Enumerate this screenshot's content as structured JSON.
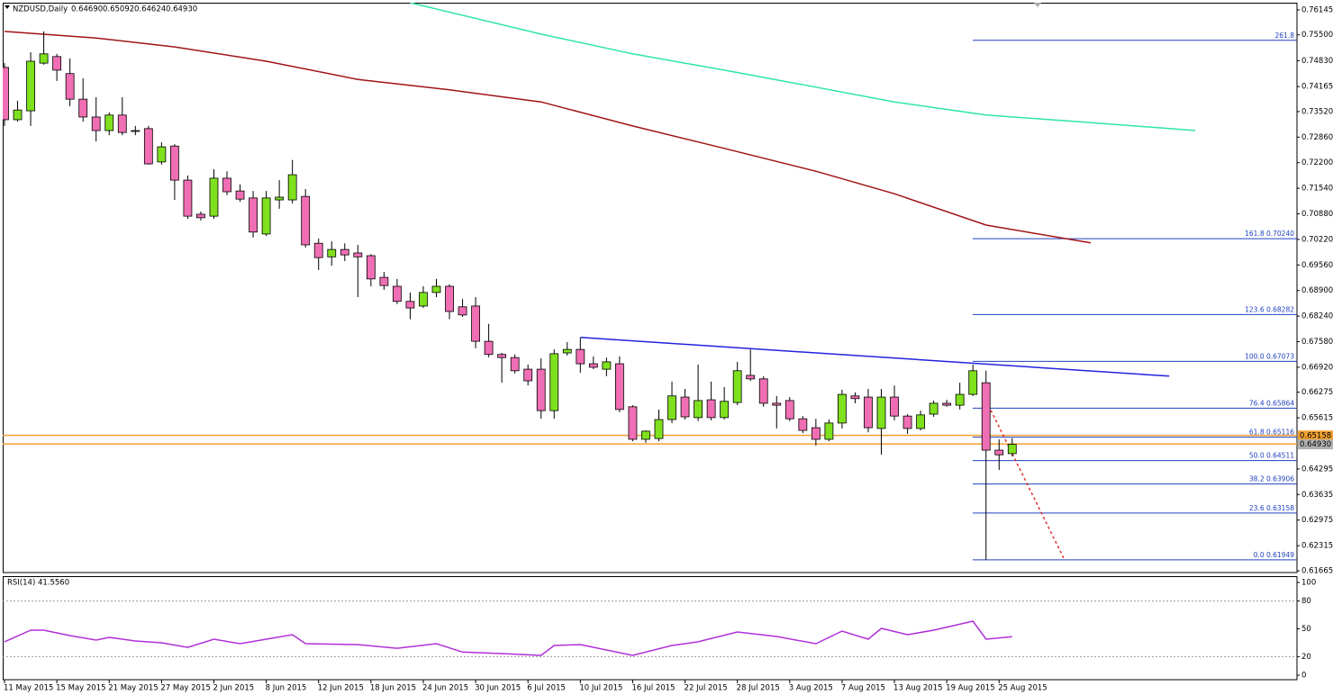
{
  "chart_data": {
    "type": "candlestick",
    "title": "NZDUSD,Daily",
    "header_values": [
      "0.64690",
      "0.65092",
      "0.64624",
      "0.64930"
    ],
    "categories": [
      "11 May 2015",
      null,
      null,
      null,
      "15 May 2015",
      null,
      null,
      null,
      "21 May 2015",
      null,
      null,
      null,
      "27 May 2015",
      null,
      null,
      null,
      "2 Jun 2015",
      null,
      null,
      null,
      "8 Jun 2015",
      null,
      null,
      null,
      "12 Jun 2015",
      null,
      null,
      null,
      "18 Jun 2015",
      null,
      null,
      null,
      "24 Jun 2015",
      null,
      null,
      null,
      "30 Jun 2015",
      null,
      null,
      null,
      "6 Jul 2015",
      null,
      null,
      null,
      "10 Jul 2015",
      null,
      null,
      null,
      "16 Jul 2015",
      null,
      null,
      null,
      "22 Jul 2015",
      null,
      null,
      null,
      "28 Jul 2015",
      null,
      null,
      null,
      "3 Aug 2015",
      null,
      null,
      null,
      "7 Aug 2015",
      null,
      null,
      null,
      "13 Aug 2015",
      null,
      null,
      null,
      "19 Aug 2015",
      null,
      null,
      null,
      "25 Aug 2015",
      null
    ],
    "open": [
      0.7466,
      0.7331,
      0.7354,
      0.7477,
      0.7494,
      0.745,
      0.7384,
      0.7338,
      0.7303,
      0.7343,
      0.7303,
      0.7308,
      0.7222,
      0.7263,
      0.7175,
      0.7087,
      0.7082,
      0.718,
      0.7147,
      0.7129,
      0.7036,
      0.7124,
      0.7124,
      0.7133,
      0.7012,
      0.6977,
      0.6996,
      0.6987,
      0.698,
      0.6924,
      0.6901,
      0.6862,
      0.685,
      0.6885,
      0.6901,
      0.6848,
      0.685,
      0.6759,
      0.6725,
      0.6717,
      0.6687,
      0.6687,
      0.658,
      0.6729,
      0.6738,
      0.6701,
      0.6687,
      0.6701,
      0.659,
      0.6506,
      0.6508,
      0.6557,
      0.6615,
      0.6562,
      0.6608,
      0.6562,
      0.6601,
      0.6671,
      0.6662,
      0.6599,
      0.6606,
      0.6559,
      0.6536,
      0.6506,
      0.6548,
      0.6618,
      0.6615,
      0.6534,
      0.6615,
      0.6566,
      0.6534,
      0.6571,
      0.6599,
      0.6594,
      0.6622,
      0.6652,
      0.6478,
      0.6469
    ],
    "high": [
      0.7477,
      0.738,
      0.7505,
      0.7559,
      0.7501,
      0.7489,
      0.7438,
      0.7389,
      0.735,
      0.7389,
      0.7315,
      0.7315,
      0.7273,
      0.7268,
      0.7187,
      0.7094,
      0.7203,
      0.7198,
      0.7164,
      0.7147,
      0.7147,
      0.7175,
      0.7227,
      0.7152,
      0.7024,
      0.7017,
      0.7012,
      0.7008,
      0.6984,
      0.6938,
      0.692,
      0.6885,
      0.6901,
      0.692,
      0.6906,
      0.6868,
      0.6873,
      0.6804,
      0.6729,
      0.6725,
      0.6699,
      0.6715,
      0.6738,
      0.6757,
      0.6768,
      0.672,
      0.6717,
      0.672,
      0.6594,
      0.6529,
      0.6583,
      0.6655,
      0.6636,
      0.6699,
      0.6655,
      0.6641,
      0.6706,
      0.6738,
      0.6669,
      0.6618,
      0.6615,
      0.6566,
      0.6559,
      0.6557,
      0.6634,
      0.6627,
      0.6636,
      0.6636,
      0.6645,
      0.6571,
      0.658,
      0.6606,
      0.6608,
      0.6652,
      0.6699,
      0.6683,
      0.6506,
      0.6509
    ],
    "low": [
      0.7315,
      0.7326,
      0.7315,
      0.7473,
      0.7431,
      0.7366,
      0.7326,
      0.7275,
      0.7291,
      0.7291,
      0.7291,
      0.7215,
      0.7215,
      0.7124,
      0.7075,
      0.7071,
      0.7075,
      0.7136,
      0.7119,
      0.7027,
      0.7031,
      0.7101,
      0.7115,
      0.7001,
      0.6943,
      0.6954,
      0.6966,
      0.6873,
      0.6901,
      0.6892,
      0.6855,
      0.6816,
      0.6845,
      0.6873,
      0.6816,
      0.6822,
      0.6741,
      0.6718,
      0.6652,
      0.6676,
      0.6645,
      0.6559,
      0.6559,
      0.6722,
      0.6678,
      0.6687,
      0.6669,
      0.6576,
      0.6501,
      0.6497,
      0.6501,
      0.6548,
      0.6557,
      0.6553,
      0.6555,
      0.6557,
      0.6594,
      0.6657,
      0.659,
      0.6534,
      0.6553,
      0.6522,
      0.649,
      0.6501,
      0.6534,
      0.6599,
      0.6524,
      0.6466,
      0.6555,
      0.652,
      0.6529,
      0.6564,
      0.659,
      0.6583,
      0.6618,
      0.6195,
      0.6427,
      0.6462
    ],
    "close": [
      0.7331,
      0.7356,
      0.7482,
      0.7501,
      0.7459,
      0.7384,
      0.7338,
      0.7303,
      0.7343,
      0.7298,
      0.7301,
      0.7217,
      0.7261,
      0.7175,
      0.7082,
      0.7078,
      0.718,
      0.7145,
      0.7126,
      0.7041,
      0.7129,
      0.7131,
      0.7189,
      0.7008,
      0.6975,
      0.6996,
      0.6982,
      0.6977,
      0.692,
      0.6903,
      0.6862,
      0.6845,
      0.6885,
      0.6901,
      0.6836,
      0.6827,
      0.6759,
      0.6725,
      0.6717,
      0.6683,
      0.6657,
      0.658,
      0.6727,
      0.6738,
      0.6701,
      0.6692,
      0.6706,
      0.6583,
      0.6506,
      0.6527,
      0.6557,
      0.6618,
      0.6564,
      0.6606,
      0.6562,
      0.6604,
      0.6683,
      0.6662,
      0.6599,
      0.6594,
      0.6559,
      0.6529,
      0.6506,
      0.6548,
      0.6622,
      0.6611,
      0.6536,
      0.6615,
      0.6566,
      0.6534,
      0.6569,
      0.6599,
      0.6594,
      0.6622,
      0.6683,
      0.6478,
      0.6466,
      0.6493
    ],
    "up_color": "#7fe01e",
    "down_color": "#f06eb4",
    "ylim": [
      0.6162,
      0.764
    ],
    "yticks": [
      0.76145,
      {
        "value": 0.755,
        "label": "0.75500"
      },
      {
        "value": 0.7483,
        "label": "0.74830"
      },
      0.74165,
      {
        "value": 0.7352,
        "label": "0.73520"
      },
      {
        "value": 0.7286,
        "label": "0.72860"
      },
      {
        "value": 0.722,
        "label": "0.72200"
      },
      {
        "value": 0.7154,
        "label": "0.71540"
      },
      {
        "value": 0.7088,
        "label": "0.70880"
      },
      {
        "value": 0.7022,
        "label": "0.70220"
      },
      {
        "value": 0.6956,
        "label": "0.69560"
      },
      {
        "value": 0.689,
        "label": "0.68900"
      },
      {
        "value": 0.6824,
        "label": "0.68240"
      },
      {
        "value": 0.6758,
        "label": "0.67580"
      },
      {
        "value": 0.6692,
        "label": "0.66920"
      },
      0.66275,
      0.65615,
      0.64295,
      0.63635,
      0.62975,
      0.62315,
      0.61665
    ],
    "lines": [
      {
        "color": "#a01414",
        "x": [
          0,
          7,
          13,
          20,
          27,
          34,
          41,
          48,
          55,
          62,
          68,
          75,
          83
        ],
        "values": [
          0.7559,
          0.7542,
          0.7519,
          0.7482,
          0.7435,
          0.7408,
          0.7377,
          0.7315,
          0.7257,
          0.7198,
          0.714,
          0.7059,
          0.7013
        ]
      },
      {
        "color": "#2ee6a0",
        "x": [
          31,
          41,
          48,
          55,
          62,
          68,
          75,
          82,
          91
        ],
        "values": [
          0.7633,
          0.7552,
          0.7501,
          0.7459,
          0.7415,
          0.7377,
          0.7343,
          0.7326,
          0.7303
        ]
      },
      {
        "color": "#2222dd",
        "x": [
          44,
          89
        ],
        "values": [
          0.6769,
          0.6669
        ]
      },
      {
        "color": "#e03030",
        "dashed": true,
        "x": [
          75,
          81
        ],
        "values": [
          0.6606,
          0.6195
        ]
      }
    ],
    "hlines": [
      {
        "value": 0.6516,
        "color": "#f0a030"
      },
      {
        "value": 0.6494,
        "color": "#f0a030"
      }
    ],
    "price_tags": [
      {
        "value": 0.65158,
        "label": "0.65158",
        "color": "#f0a030"
      },
      {
        "value": 0.6493,
        "label": "0.64930",
        "color": "#b0b0b0"
      }
    ],
    "fib_color": "#2040c0",
    "fib_levels": [
      {
        "value": 0.7536,
        "label": "261.8"
      },
      {
        "value": 0.7024,
        "label": "161.8 0.70240"
      },
      {
        "value": 0.68282,
        "label": "123.6 0.68282"
      },
      {
        "value": 0.67073,
        "label": "100.0 0.67073"
      },
      {
        "value": 0.65864,
        "label": "76.4 0.65864"
      },
      {
        "value": 0.65116,
        "label": "61.8 0.65116"
      },
      {
        "value": 0.64511,
        "label": "50.0 0.64511"
      },
      {
        "value": 0.63906,
        "label": "38.2 0.63906"
      },
      {
        "value": 0.63158,
        "label": "23.6 0.63158"
      },
      {
        "value": 0.61949,
        "label": "0.0 0.61949"
      }
    ],
    "rsi": {
      "title": "RSI(14) 41.5560",
      "color": "#b030d8",
      "ylim": [
        0,
        100
      ],
      "yticks": [
        0,
        20,
        50,
        80,
        100
      ],
      "dashed_levels": [
        20,
        80
      ],
      "x": [
        0,
        2,
        3,
        5,
        7,
        8,
        10,
        12,
        14,
        16,
        18,
        20,
        22,
        23,
        27,
        30,
        33,
        35,
        38,
        41,
        42,
        44,
        48,
        51,
        53,
        56,
        59,
        62,
        64,
        66,
        67,
        69,
        71,
        74,
        75,
        77
      ],
      "values": [
        36,
        48.5,
        48.5,
        42.7,
        37.9,
        40.8,
        36.9,
        35,
        30,
        38.8,
        34,
        38.8,
        43.7,
        34,
        33,
        29,
        34,
        25,
        23.3,
        21.4,
        32,
        33,
        21.4,
        32,
        36,
        46.6,
        41.7,
        34,
        47.6,
        38.8,
        50.5,
        43.7,
        48.5,
        58.3,
        38.8,
        41.556
      ]
    }
  }
}
